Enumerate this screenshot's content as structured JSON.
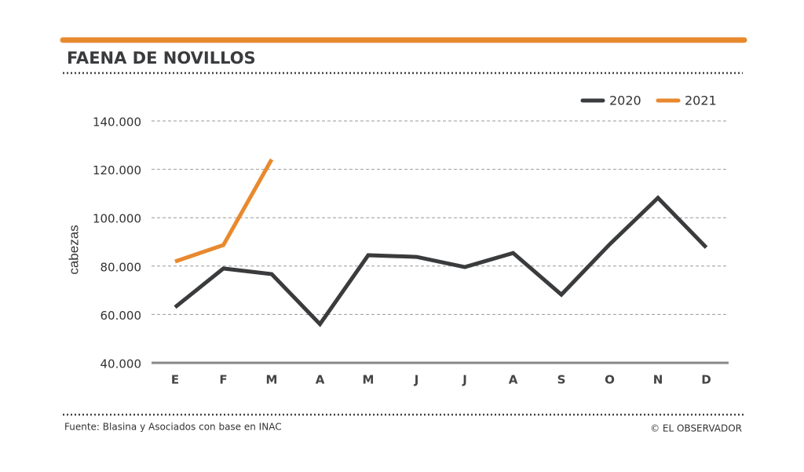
{
  "chart_data": {
    "type": "line",
    "title": "FAENA DE NOVILLOS",
    "ylabel": "cabezas",
    "source": "Fuente: Blasina y Asociados con base en INAC",
    "credit": "© EL OBSERVADOR",
    "categories": [
      "E",
      "F",
      "M",
      "A",
      "M",
      "J",
      "J",
      "A",
      "S",
      "O",
      "N",
      "D"
    ],
    "series": [
      {
        "name": "2020",
        "color": "#3a3b3d",
        "values": [
          63000,
          79000,
          76700,
          56000,
          84500,
          83800,
          79600,
          85400,
          68200,
          89000,
          108200,
          87700
        ]
      },
      {
        "name": "2021",
        "color": "#e8892e",
        "values": [
          81900,
          88700,
          124100,
          null,
          null,
          null,
          null,
          null,
          null,
          null,
          null,
          null
        ]
      }
    ],
    "ylim": [
      40000,
      140000
    ],
    "yticks": [
      {
        "value": 40000,
        "label": "40.000"
      },
      {
        "value": 60000,
        "label": "60.000"
      },
      {
        "value": 80000,
        "label": "80.000"
      },
      {
        "value": 100000,
        "label": "100.000"
      },
      {
        "value": 120000,
        "label": "120.000"
      },
      {
        "value": 140000,
        "label": "140.000"
      }
    ],
    "grid": true,
    "legend": "top-right"
  }
}
